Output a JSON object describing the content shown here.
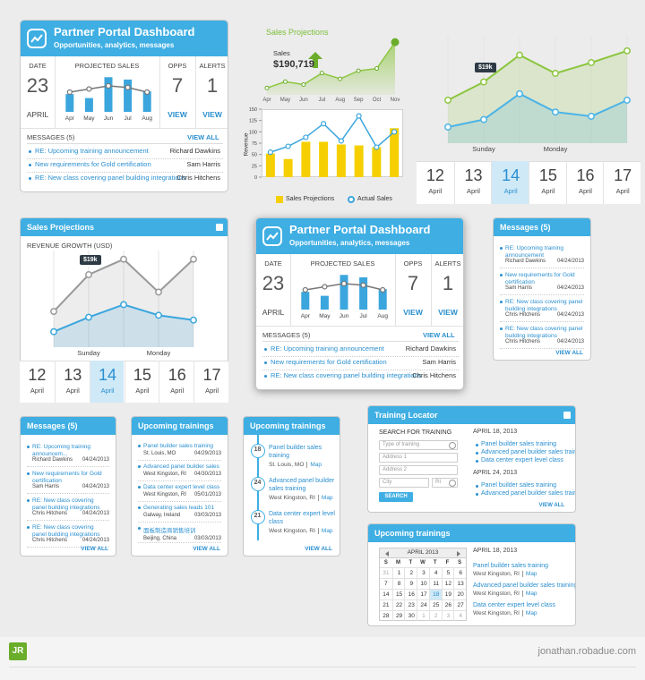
{
  "dashboards": [
    {
      "title": "Partner Portal Dashboard",
      "subtitle": "Opportunities, analytics, messages",
      "date_label": "DATE",
      "day": 23,
      "month": "APRIL",
      "sales_label": "PROJECTED SALES",
      "opps_label": "OPPS",
      "opps": 7,
      "opps_link": "VIEW",
      "alerts_label": "ALERTS",
      "alerts": 1,
      "alerts_link": "VIEW",
      "chart": {
        "type": "bar",
        "categories": [
          "Apr",
          "May",
          "Jun",
          "Jul",
          "Aug"
        ],
        "ylim": [
          0,
          100
        ],
        "bars": [
          45,
          35,
          88,
          82,
          52
        ],
        "line": [
          50,
          58,
          66,
          62,
          50
        ]
      },
      "messages_title": "MESSAGES (5)",
      "view_all": "VIEW ALL",
      "messages": [
        {
          "subject": "RE: Upcoming training announcement",
          "sender": "Richard Dawkins"
        },
        {
          "subject": "New requirements for Gold certification",
          "sender": "Sam Harris"
        },
        {
          "subject": "RE: New class covering panel building integrations",
          "sender": "Chris Hitchens"
        }
      ]
    },
    {
      "title": "Partner Portal Dashboard",
      "subtitle": "Opportunities, analytics, messages",
      "date_label": "DATE",
      "day": 23,
      "month": "APRIL",
      "sales_label": "PROJECTED SALES",
      "opps_label": "OPPS",
      "opps": 7,
      "opps_link": "VIEW",
      "alerts_label": "ALERTS",
      "alerts": 1,
      "alerts_link": "VIEW",
      "chart": {
        "type": "bar",
        "categories": [
          "Apr",
          "May",
          "Jun",
          "Jul",
          "Aug"
        ],
        "ylim": [
          0,
          100
        ],
        "bars": [
          45,
          35,
          88,
          82,
          52
        ],
        "line": [
          50,
          58,
          66,
          62,
          50
        ]
      },
      "messages_title": "MESSAGES (5)",
      "view_all": "VIEW ALL",
      "messages": [
        {
          "subject": "RE: Upcoming training announcement",
          "sender": "Richard Dawkins"
        },
        {
          "subject": "New requirements for Gold certification",
          "sender": "Sam Harris"
        },
        {
          "subject": "RE: New class covering panel building integrations",
          "sender": "Chris Hitchens"
        }
      ]
    }
  ],
  "sales_area": {
    "type": "area",
    "title": "Sales Projections",
    "label": "Sales",
    "total": "$190,719",
    "categories": [
      "Apr",
      "May",
      "Jun",
      "Jul",
      "Aug",
      "Sep",
      "Oct",
      "Nov"
    ],
    "values": [
      12,
      23,
      18,
      38,
      28,
      42,
      46,
      92
    ],
    "ylim": [
      0,
      100
    ],
    "color": "#8cc63f"
  },
  "revenue_chart": {
    "type": "bar",
    "ylabel": "Revenue",
    "ylim": [
      0,
      150
    ],
    "yticks": [
      0,
      25,
      50,
      75,
      100,
      125,
      150
    ],
    "series": [
      {
        "name": "Sales Projections",
        "type": "bar",
        "color": "#f5cf00",
        "values": [
          52,
          40,
          78,
          78,
          72,
          70,
          66,
          108
        ]
      },
      {
        "name": "Actual Sales",
        "type": "line",
        "color": "#3ba6dd",
        "values": [
          55,
          68,
          88,
          118,
          80,
          135,
          66,
          100
        ]
      }
    ]
  },
  "weekly_chart": {
    "type": "line",
    "categories": [
      null,
      "Sunday",
      null,
      "Monday",
      null,
      null
    ],
    "ylim": [
      0,
      100
    ],
    "annotation": "$19k",
    "series": [
      {
        "color": "#8cc63f",
        "values": [
          40,
          57,
          82,
          65,
          75,
          86
        ]
      },
      {
        "color": "#4ab3e6",
        "values": [
          15,
          22,
          46,
          29,
          25,
          40
        ]
      }
    ],
    "dates": {
      "days": [
        12,
        13,
        14,
        15,
        16,
        17
      ],
      "months": [
        "April",
        "April",
        "April",
        "April",
        "April",
        "April"
      ],
      "selected": 14
    }
  },
  "sales_widget": {
    "title": "Sales Projections",
    "subtitle": "REVENUE GROWTH (USD)",
    "chart": {
      "type": "line",
      "categories": [
        null,
        "Sunday",
        null,
        "Monday",
        null
      ],
      "ylim": [
        0,
        100
      ],
      "annotation": "$19k",
      "series": [
        {
          "color": "#9a9a9a",
          "values": [
            37,
            75,
            91,
            57,
            91
          ]
        },
        {
          "color": "#3ba6dd",
          "values": [
            16,
            31,
            44,
            33,
            28
          ]
        }
      ]
    },
    "dates": {
      "days": [
        12,
        13,
        14,
        15,
        16,
        17
      ],
      "months": [
        "April",
        "April",
        "April",
        "April",
        "April",
        "April"
      ],
      "selected": 14
    }
  },
  "messages_widgets": [
    {
      "title": "Messages (5)",
      "view_all": "VIEW ALL",
      "items": [
        {
          "subject": "RE: Upcoming training announcement",
          "sender": "Richard Dawkins",
          "date": "04/24/2013"
        },
        {
          "subject": "New requirements for Gold certification",
          "sender": "Sam Harris",
          "date": "04/24/2013"
        },
        {
          "subject": "RE: New class covering panel building integrations",
          "sender": "Chris Hitchens",
          "date": "04/24/2013"
        },
        {
          "subject": "RE: New class covering panel building integrations",
          "sender": "Chris Hitchens",
          "date": "04/24/2013"
        }
      ]
    },
    {
      "title": "Messages (5)",
      "view_all": "VIEW ALL",
      "items": [
        {
          "subject": "RE: Upcoming training announcem...",
          "sender": "Richard Dawkins",
          "date": "04/24/2013"
        },
        {
          "subject": "New requirements for Gold certification",
          "sender": "Sam Harris",
          "date": "04/24/2013"
        },
        {
          "subject": "RE: New class covering panel building integrations",
          "sender": "Chris Hitchens",
          "date": "04/24/2013"
        },
        {
          "subject": "RE: New class covering panel building integrations",
          "sender": "Chris Hitchens",
          "date": "04/24/2013"
        }
      ]
    }
  ],
  "trainings_list": {
    "title": "Upcoming trainings",
    "view_all": "VIEW ALL",
    "items": [
      {
        "name": "Panel builder sales training",
        "location": "St. Louis, MO",
        "date": "04/29/2013"
      },
      {
        "name": "Advanced panel builder sales training",
        "location": "West Kingston, RI",
        "date": "04/30/2013"
      },
      {
        "name": "Data center expert level class",
        "location": "West Kingston, RI",
        "date": "05/01/2013"
      },
      {
        "name": "Generating sales leads 101",
        "location": "Galway, Ireland",
        "date": "03/03/2013"
      },
      {
        "name": "面板制造商销售培训",
        "location": "Beijing, China",
        "date": "03/03/2013"
      }
    ]
  },
  "trainings_timeline": {
    "title": "Upcoming trainings",
    "view_all": "VIEW ALL",
    "items": [
      {
        "day": 18,
        "name": "Panel builder sales training",
        "location": "St. Louis, MO",
        "link": "Map"
      },
      {
        "day": 24,
        "name": "Advanced panel builder sales training",
        "location": "West Kingston, RI",
        "link": "Map"
      },
      {
        "day": 21,
        "name": "Data center expert level class",
        "location": "West Kingston, RI",
        "link": "Map"
      }
    ]
  },
  "training_locator": {
    "title": "Training Locator",
    "search_label": "SEARCH FOR TRAINING",
    "fields": [
      "Type of training",
      "Address 1",
      "Address 2",
      "City",
      "RI"
    ],
    "button": "SEARCH",
    "view_all": "VIEW ALL",
    "groups": [
      {
        "date": "APRIL 18, 2013",
        "items": [
          "Panel builder sales training",
          "Advanced panel builder sales training",
          "Data center expert level class"
        ]
      },
      {
        "date": "APRIL 24, 2013",
        "items": [
          "Panel builder sales training",
          "Advanced panel builder sales training"
        ]
      }
    ]
  },
  "training_calendar": {
    "title": "Upcoming trainings",
    "month": "APRIL 2013",
    "weekdays": [
      "S",
      "M",
      "T",
      "W",
      "T",
      "F",
      "S"
    ],
    "weeks": [
      [
        31,
        1,
        2,
        3,
        4,
        5,
        6
      ],
      [
        7,
        8,
        9,
        10,
        11,
        12,
        13
      ],
      [
        14,
        15,
        16,
        17,
        18,
        19,
        20
      ],
      [
        21,
        22,
        23,
        24,
        25,
        26,
        27
      ],
      [
        28,
        29,
        30,
        1,
        2,
        3,
        4
      ]
    ],
    "selected_day": 18,
    "date": "APRIL 18, 2013",
    "items": [
      {
        "name": "Panel builder sales training",
        "location": "West Kingston, RI",
        "link": "Map"
      },
      {
        "name": "Advanced panel builder sales training",
        "location": "West Kingston, RI",
        "link": "Map"
      },
      {
        "name": "Data center expert level class",
        "location": "West Kingston, RI",
        "link": "Map"
      }
    ]
  },
  "footer": {
    "logo": "JR",
    "site": "jonathan.robadue.com"
  }
}
